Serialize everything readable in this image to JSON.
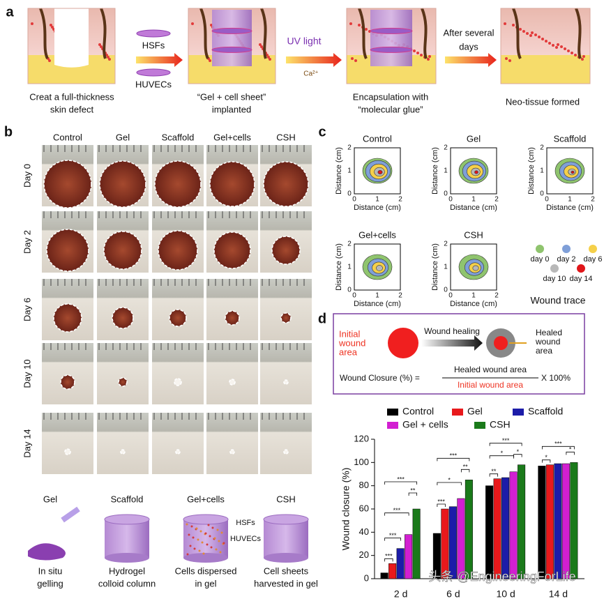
{
  "panel_a": {
    "label": "a",
    "defect_caption": [
      "Creat a full-thickness",
      "skin defect"
    ],
    "cell_sheets": [
      "HSFs",
      "HUVECs"
    ],
    "implant_caption": [
      "“Gel + cell sheet”",
      "implanted"
    ],
    "uv_light": "UV light",
    "calcium": "Ca²⁺",
    "encapsulation_caption": [
      "Encapsulation with",
      "“molecular glue”"
    ],
    "time_caption": [
      "After several",
      "days"
    ],
    "final_caption": "Neo-tissue formed"
  },
  "panel_b": {
    "label": "b",
    "groups": [
      "Control",
      "Gel",
      "Scaffold",
      "Gel+cells",
      "CSH"
    ],
    "days": [
      "Day 0",
      "Day 2",
      "Day 6",
      "Day 10",
      "Day 14"
    ],
    "schematics": [
      {
        "title": "Gel",
        "caption": [
          "In situ",
          "gelling"
        ]
      },
      {
        "title": "Scaffold",
        "caption": [
          "Hydrogel",
          "colloid column"
        ]
      },
      {
        "title": "Gel+cells",
        "caption": [
          "Cells dispersed",
          "in gel"
        ]
      },
      {
        "title": "CSH",
        "caption": [
          "Cell sheets",
          "harvested in gel"
        ]
      }
    ],
    "cell_labels": [
      "HSFs",
      "HUVECs"
    ]
  },
  "panel_c": {
    "label": "c",
    "plots": [
      "Control",
      "Gel",
      "Scaffold",
      "Gel+cells",
      "CSH"
    ],
    "axis_label": "Distance (cm)",
    "ticks": [
      0,
      1,
      2
    ],
    "legend": [
      {
        "name": "day 0",
        "color": "#8fc46e"
      },
      {
        "name": "day 2",
        "color": "#7f9fd8"
      },
      {
        "name": "day 6",
        "color": "#f5d04a"
      },
      {
        "name": "day 10",
        "color": "#b8b8b8"
      },
      {
        "name": "day 14",
        "color": "#e0161a"
      }
    ],
    "legend_title": "Wound trace"
  },
  "panel_d": {
    "label": "d",
    "initial": [
      "Initial",
      "wound",
      "area"
    ],
    "process": "Wound healing",
    "healed": [
      "Healed",
      "wound",
      "area"
    ],
    "formula_left": "Wound Closure (%) =",
    "numerator": "Healed wound area",
    "denominator": "Initial wound area",
    "formula_right": "X 100%",
    "chart_data": {
      "type": "bar",
      "ylabel": "Wound closure (%)",
      "categories": [
        "2 d",
        "6 d",
        "10 d",
        "14 d"
      ],
      "series": [
        {
          "name": "Control",
          "color": "#000000",
          "values": [
            5,
            39,
            80,
            97
          ]
        },
        {
          "name": "Gel",
          "color": "#e8191c",
          "values": [
            13,
            60,
            86,
            98
          ]
        },
        {
          "name": "Scaffold",
          "color": "#1c1ca8",
          "values": [
            26,
            62,
            87,
            99
          ]
        },
        {
          "name": "Gel + cells",
          "color": "#d21fd1",
          "values": [
            38,
            69,
            92,
            99
          ]
        },
        {
          "name": "CSH",
          "color": "#1a7a1a",
          "values": [
            60,
            85,
            98,
            100
          ]
        }
      ],
      "ylim": [
        0,
        120
      ],
      "yticks": [
        0,
        20,
        40,
        60,
        80,
        100,
        120
      ],
      "significance": [
        {
          "category": "2 d",
          "pair": [
            "Control",
            "Gel"
          ],
          "label": "***"
        },
        {
          "category": "2 d",
          "pair": [
            "Control",
            "Scaffold"
          ],
          "label": "***"
        },
        {
          "category": "2 d",
          "pair": [
            "Gel + cells",
            "CSH"
          ],
          "label": "**"
        },
        {
          "category": "2 d",
          "pair": [
            "Control",
            "Gel + cells"
          ],
          "label": "***"
        },
        {
          "category": "2 d",
          "pair": [
            "Control",
            "CSH"
          ],
          "label": "***"
        },
        {
          "category": "6 d",
          "pair": [
            "Control",
            "Gel"
          ],
          "label": "***"
        },
        {
          "category": "6 d",
          "pair": [
            "Gel + cells",
            "CSH"
          ],
          "label": "**"
        },
        {
          "category": "6 d",
          "pair": [
            "Control",
            "Gel + cells"
          ],
          "label": "*"
        },
        {
          "category": "6 d",
          "pair": [
            "Control",
            "CSH"
          ],
          "label": "***"
        },
        {
          "category": "10 d",
          "pair": [
            "Control",
            "Gel"
          ],
          "label": "**"
        },
        {
          "category": "10 d",
          "pair": [
            "Gel + cells",
            "CSH"
          ],
          "label": "*"
        },
        {
          "category": "10 d",
          "pair": [
            "Control",
            "Gel + cells"
          ],
          "label": "*"
        },
        {
          "category": "10 d",
          "pair": [
            "Control",
            "CSH"
          ],
          "label": "***"
        },
        {
          "category": "14 d",
          "pair": [
            "Control",
            "Gel"
          ],
          "label": "*"
        },
        {
          "category": "14 d",
          "pair": [
            "Gel + cells",
            "CSH"
          ],
          "label": "*"
        },
        {
          "category": "14 d",
          "pair": [
            "Control",
            "CSH"
          ],
          "label": "***"
        }
      ]
    }
  },
  "watermark": "头条 @EngineeringForLife"
}
